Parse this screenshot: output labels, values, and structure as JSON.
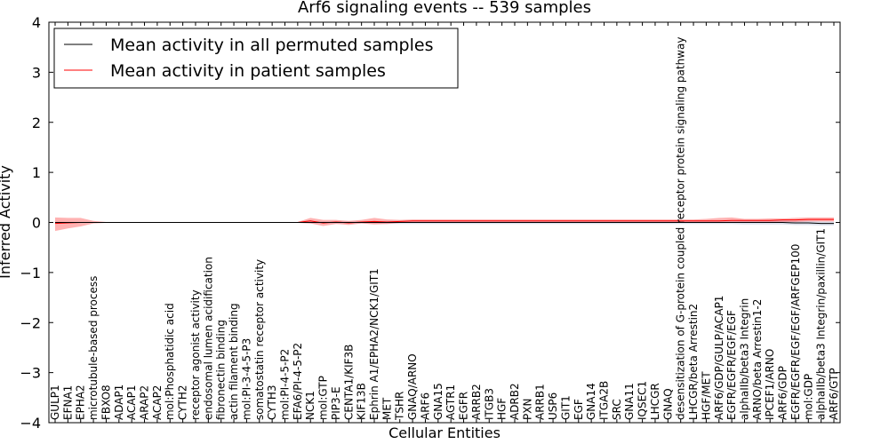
{
  "chart_data": {
    "type": "line",
    "title": "Arf6 signaling events -- 539 samples",
    "xlabel": "Cellular Entities",
    "ylabel": "Inferred Activity",
    "ylim": [
      -4,
      4
    ],
    "yticks": [
      4,
      3,
      2,
      1,
      0,
      -1,
      -2,
      -3,
      -4
    ],
    "ytick_labels": [
      "4",
      "3",
      "2",
      "1",
      "0",
      "−1",
      "−2",
      "−3",
      "−4"
    ],
    "grid": false,
    "legend_position": "top-left",
    "categories": [
      "GULP1",
      "EFNA1",
      "EPHA2",
      "microtubule-based process",
      "FBXO8",
      "ADAP1",
      "ACAP1",
      "ARAP2",
      "ACAP2",
      "mol:Phosphatidic acid",
      "CYTH2",
      "receptor agonist activity",
      "endosomal lumen acidification",
      "fibronectin binding",
      "actin filament binding",
      "mol:PI-3-4-5-P3",
      "somatostatin receptor activity",
      "CYTH3",
      "mol:PI-4-5-P2",
      "EFA6/PI-4-5-P2",
      "NCK1",
      "mol:GTP",
      "PIP3-E",
      "CENTA1/KIF3B",
      "KIF13B",
      "Ephrin A1/EPHA2/NCK1/GIT1",
      "MET",
      "TSHR",
      "GNAQ/ARNO",
      "ARF6",
      "GNA15",
      "AGTR1",
      "EGFR",
      "ARRB2",
      "ITGB3",
      "HGF",
      "ADRB2",
      "PXN",
      "ARRB1",
      "USP6",
      "GIT1",
      "EGF",
      "GNA14",
      "ITGA2B",
      "SRC",
      "GNA11",
      "IQSEC1",
      "LHCGR",
      "GNAQ",
      "desensitization of G-protein coupled receptor protein signaling pathway",
      "LHCGR/beta Arrestin2",
      "HGF/MET",
      "ARF6/GDP/GULP/ACAP1",
      "EGFR/EGFR/EGF/EGF",
      "alphaIIb/beta3 Integrin",
      "ARNO/beta Arrestin1-2",
      "IPCEF1/ARNO",
      "ARF6/GDP",
      "EGFR/EGFR/EGF/EGF/ARFGEP100",
      "mol:GDP",
      "alphaIIb/beta3 Integrin/paxillin/GIT1",
      "ARF6/GTP"
    ],
    "series": [
      {
        "name": "Mean activity in all permuted samples",
        "color": "#000000",
        "values": [
          0,
          0,
          0,
          0,
          0,
          0,
          0,
          0,
          0,
          0,
          0,
          0,
          0,
          0,
          0,
          0,
          0,
          0,
          0,
          0,
          0,
          0,
          0,
          0,
          0,
          0,
          0,
          0,
          0,
          0,
          0,
          0,
          0,
          0,
          0,
          0,
          0,
          0,
          0,
          0,
          0,
          0,
          0,
          0,
          0,
          0,
          0,
          0,
          0,
          0,
          0,
          0,
          0,
          0,
          0,
          0,
          0,
          0,
          -0.01,
          -0.01,
          -0.02,
          -0.02
        ],
        "band_low": [
          -0.01,
          -0.01,
          -0.01,
          -0.01,
          -0.01,
          -0.01,
          -0.01,
          -0.01,
          -0.01,
          -0.01,
          -0.01,
          -0.01,
          -0.01,
          -0.01,
          -0.01,
          -0.01,
          -0.01,
          -0.01,
          -0.01,
          -0.01,
          -0.02,
          -0.02,
          -0.02,
          -0.02,
          -0.02,
          -0.02,
          -0.03,
          -0.03,
          -0.03,
          -0.03,
          -0.03,
          -0.03,
          -0.03,
          -0.03,
          -0.03,
          -0.03,
          -0.03,
          -0.03,
          -0.03,
          -0.03,
          -0.03,
          -0.03,
          -0.03,
          -0.03,
          -0.03,
          -0.03,
          -0.03,
          -0.03,
          -0.03,
          -0.03,
          -0.03,
          -0.03,
          -0.03,
          -0.03,
          -0.04,
          -0.04,
          -0.04,
          -0.04,
          -0.05,
          -0.05,
          -0.06,
          -0.06
        ],
        "band_high": [
          0.01,
          0.01,
          0.01,
          0.01,
          0.01,
          0.01,
          0.01,
          0.01,
          0.01,
          0.01,
          0.01,
          0.01,
          0.01,
          0.01,
          0.01,
          0.01,
          0.01,
          0.01,
          0.01,
          0.01,
          0.02,
          0.02,
          0.02,
          0.02,
          0.02,
          0.02,
          0.03,
          0.03,
          0.03,
          0.03,
          0.03,
          0.03,
          0.03,
          0.03,
          0.03,
          0.03,
          0.03,
          0.03,
          0.03,
          0.03,
          0.03,
          0.03,
          0.03,
          0.03,
          0.03,
          0.03,
          0.03,
          0.03,
          0.03,
          0.03,
          0.03,
          0.03,
          0.03,
          0.03,
          0.04,
          0.04,
          0.04,
          0.04,
          0.03,
          0.03,
          0.02,
          0.02
        ]
      },
      {
        "name": "Mean activity in patient samples",
        "color": "#ff0000",
        "values": [
          -0.02,
          -0.01,
          0,
          0,
          0,
          0,
          0,
          0,
          0,
          0,
          0,
          0,
          0,
          0,
          0,
          0,
          0,
          0,
          0,
          0,
          0.03,
          -0.01,
          0.01,
          -0.01,
          0.01,
          0.02,
          0.01,
          0.02,
          0.03,
          0.03,
          0.03,
          0.03,
          0.03,
          0.03,
          0.03,
          0.03,
          0.03,
          0.03,
          0.03,
          0.03,
          0.03,
          0.03,
          0.03,
          0.03,
          0.03,
          0.03,
          0.03,
          0.03,
          0.03,
          0.03,
          0.03,
          0.03,
          0.03,
          0.04,
          0.04,
          0.04,
          0.04,
          0.05,
          0.05,
          0.06,
          0.06,
          0.06
        ],
        "band_low": [
          -0.17,
          -0.12,
          -0.08,
          -0.02,
          -0.01,
          -0.01,
          -0.01,
          -0.01,
          -0.01,
          -0.01,
          -0.01,
          -0.01,
          -0.01,
          -0.01,
          -0.01,
          -0.01,
          -0.01,
          -0.01,
          -0.01,
          -0.01,
          -0.02,
          -0.07,
          -0.03,
          -0.05,
          -0.02,
          -0.04,
          -0.03,
          -0.01,
          0,
          0,
          0,
          0,
          0,
          0,
          0,
          0,
          0,
          0,
          0,
          0,
          0,
          0,
          0,
          0,
          0,
          0,
          0,
          0,
          0,
          0,
          0,
          0,
          0,
          0,
          0,
          0,
          0,
          0.01,
          0.01,
          0.02,
          0.02,
          0.02
        ],
        "band_high": [
          0.1,
          0.09,
          0.09,
          0.03,
          0.01,
          0.01,
          0.01,
          0.01,
          0.01,
          0.01,
          0.01,
          0.01,
          0.01,
          0.01,
          0.01,
          0.01,
          0.01,
          0.01,
          0.01,
          0.01,
          0.09,
          0.05,
          0.05,
          0.03,
          0.05,
          0.09,
          0.06,
          0.05,
          0.06,
          0.06,
          0.06,
          0.06,
          0.06,
          0.06,
          0.06,
          0.06,
          0.06,
          0.06,
          0.06,
          0.06,
          0.06,
          0.06,
          0.06,
          0.06,
          0.06,
          0.06,
          0.06,
          0.06,
          0.06,
          0.06,
          0.06,
          0.07,
          0.09,
          0.1,
          0.07,
          0.07,
          0.08,
          0.08,
          0.09,
          0.1,
          0.1,
          0.1
        ]
      }
    ]
  }
}
